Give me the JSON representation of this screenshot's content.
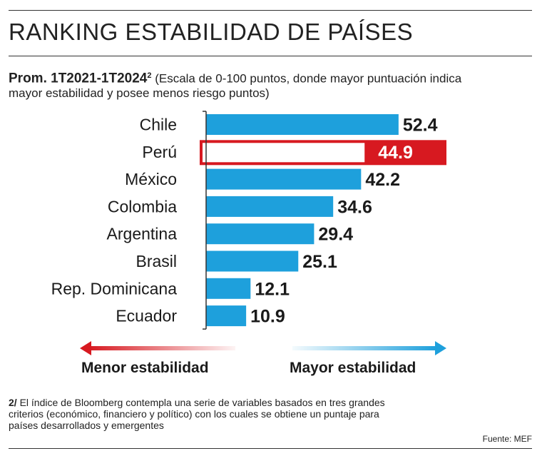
{
  "title": "RANKING ESTABILIDAD DE PAÍSES",
  "subtitle": {
    "bold": "Prom. 1T2021-1T2024",
    "sup": "2",
    "rest": " (Escala de 0-100 puntos, donde mayor puntuación indica mayor estabilidad y posee menos riesgo puntos)"
  },
  "chart_data": {
    "type": "bar",
    "orientation": "horizontal",
    "categories": [
      "Chile",
      "Perú",
      "México",
      "Colombia",
      "Argentina",
      "Brasil",
      "Rep. Dominicana",
      "Ecuador"
    ],
    "values": [
      52.4,
      44.9,
      42.2,
      34.6,
      29.4,
      25.1,
      12.1,
      10.9
    ],
    "value_labels": [
      "52.4",
      "44.9",
      "42.2",
      "34.6",
      "29.4",
      "25.1",
      "12.1",
      "10.9"
    ],
    "highlight": "Perú",
    "xlim": [
      0,
      100
    ],
    "colors": {
      "bar": "#1ea0dc",
      "highlight": "#d71920",
      "highlight_fill": "#ffffff",
      "axis": "#333333"
    }
  },
  "legend": {
    "left_label": "Menor estabilidad",
    "right_label": "Mayor estabilidad",
    "left_color": "#d71920",
    "right_color": "#1ea0dc"
  },
  "footnote": {
    "number": "2/",
    "text": " El índice de Bloomberg contempla una serie de variables basados en tres grandes criterios (económico, financiero y político) con los cuales se obtiene un puntaje para países desarrollados y emergentes"
  },
  "source": "Fuente: MEF"
}
